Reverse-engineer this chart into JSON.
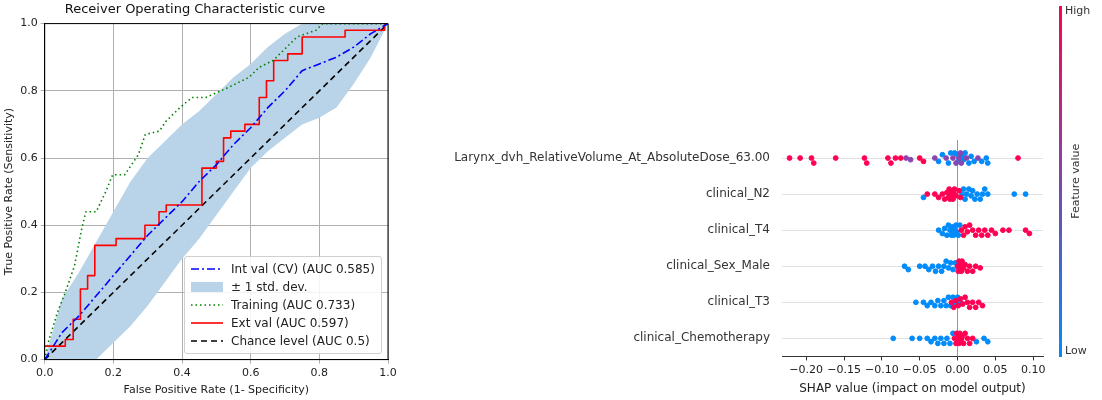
{
  "chart_data": [
    {
      "type": "line",
      "title": "Receiver Operating Characteristic curve",
      "xlabel": "False Positive Rate (1- Specificity)",
      "ylabel": "True Positive Rate (Sensitivity)",
      "xlim": [
        0,
        1
      ],
      "ylim": [
        0,
        1
      ],
      "xticks": [
        {
          "value": 0,
          "label": "0.0"
        },
        {
          "value": 0.2,
          "label": "0.2"
        },
        {
          "value": 0.4,
          "label": "0.4"
        },
        {
          "value": 0.6,
          "label": "0.6"
        },
        {
          "value": 0.8,
          "label": "0.8"
        },
        {
          "value": 1,
          "label": "1.0"
        }
      ],
      "yticks": [
        {
          "value": 0,
          "label": "0.0"
        },
        {
          "value": 0.2,
          "label": "0.2"
        },
        {
          "value": 0.4,
          "label": "0.4"
        },
        {
          "value": 0.6,
          "label": "0.6"
        },
        {
          "value": 0.8,
          "label": "0.8"
        },
        {
          "value": 1,
          "label": "1.0"
        }
      ],
      "grid": true,
      "legend": "bottom right",
      "marker": "none",
      "annotations": [
        "± 1 std. dev."
      ],
      "series": [
        {
          "name": "Int val (CV) (AUC 0.585)",
          "type": "line",
          "color": "#0000ff",
          "line_style": "dashdot",
          "x": [
            0,
            0.05,
            0.1,
            0.15,
            0.2,
            0.25,
            0.3,
            0.35,
            0.4,
            0.45,
            0.5,
            0.55,
            0.6,
            0.65,
            0.7,
            0.75,
            0.8,
            0.85,
            0.9,
            0.95,
            1
          ],
          "values": [
            0,
            0.08,
            0.13,
            0.19,
            0.25,
            0.31,
            0.37,
            0.42,
            0.47,
            0.53,
            0.58,
            0.64,
            0.69,
            0.75,
            0.8,
            0.86,
            0.88,
            0.9,
            0.93,
            0.97,
            1
          ],
          "lower": [
            0,
            0,
            0,
            0,
            0.05,
            0.1,
            0.16,
            0.23,
            0.3,
            0.36,
            0.43,
            0.5,
            0.57,
            0.62,
            0.66,
            0.7,
            0.72,
            0.75,
            0.82,
            0.9,
            1
          ],
          "upper": [
            0,
            0.18,
            0.26,
            0.35,
            0.44,
            0.53,
            0.6,
            0.65,
            0.7,
            0.74,
            0.79,
            0.84,
            0.88,
            0.93,
            0.97,
            1,
            1,
            1,
            1,
            1,
            1
          ]
        },
        {
          "name": "Training (AUC 0.733)",
          "type": "line",
          "color": "#008000",
          "line_style": "dotted",
          "x": [
            0,
            0.012,
            0.037,
            0.06,
            0.087,
            0.108,
            0.12,
            0.15,
            0.178,
            0.198,
            0.233,
            0.273,
            0.293,
            0.334,
            0.354,
            0.394,
            0.429,
            0.469,
            0.535,
            0.595,
            0.625,
            0.665,
            0.695,
            0.735,
            0.79,
            0.81,
            1
          ],
          "values": [
            0,
            0.057,
            0.14,
            0.2,
            0.28,
            0.39,
            0.44,
            0.44,
            0.5,
            0.55,
            0.55,
            0.61,
            0.67,
            0.68,
            0.71,
            0.75,
            0.78,
            0.78,
            0.81,
            0.84,
            0.87,
            0.89,
            0.92,
            0.96,
            0.98,
            1,
            1
          ]
        },
        {
          "name": "Ext val (AUC 0.597)",
          "type": "line",
          "color": "#ff0000",
          "line_style": "solid",
          "x": [
            0,
            0.06,
            0.06,
            0.083,
            0.083,
            0.104,
            0.104,
            0.125,
            0.125,
            0.146,
            0.146,
            0.208,
            0.208,
            0.292,
            0.292,
            0.333,
            0.333,
            0.354,
            0.354,
            0.458,
            0.458,
            0.5,
            0.5,
            0.521,
            0.521,
            0.542,
            0.542,
            0.583,
            0.583,
            0.625,
            0.625,
            0.646,
            0.646,
            0.667,
            0.667,
            0.708,
            0.708,
            0.75,
            0.75,
            0.875,
            0.875,
            0.99,
            0.99,
            1
          ],
          "values": [
            0.04,
            0.04,
            0.06,
            0.06,
            0.12,
            0.12,
            0.21,
            0.21,
            0.25,
            0.25,
            0.34,
            0.34,
            0.36,
            0.36,
            0.4,
            0.4,
            0.44,
            0.44,
            0.46,
            0.46,
            0.57,
            0.57,
            0.59,
            0.59,
            0.66,
            0.66,
            0.68,
            0.68,
            0.7,
            0.7,
            0.78,
            0.78,
            0.83,
            0.83,
            0.89,
            0.89,
            0.91,
            0.91,
            0.96,
            0.96,
            0.98,
            0.98,
            1,
            1
          ]
        },
        {
          "name": "Chance level (AUC 0.5)",
          "type": "line",
          "color": "#000000",
          "line_style": "dashed",
          "x": [
            0,
            1
          ],
          "values": [
            0,
            1
          ]
        }
      ]
    },
    {
      "type": "scatter",
      "orientation": "horizontal",
      "xlabel": "SHAP value (impact on model output)",
      "legend_title": "Feature value",
      "legend": "right",
      "categories": [
        "Larynx_dvh_RelativeVolume_At_AbsoluteDose_63.00",
        "clinical_N2",
        "clinical_T4",
        "clinical_Sex_Male",
        "clinical_T3",
        "clinical_Chemotherapy"
      ],
      "xlim": [
        -0.232,
        0.113
      ],
      "xticks": [
        {
          "value": -0.2,
          "label": "−0.20"
        },
        {
          "value": -0.15,
          "label": "−0.15"
        },
        {
          "value": -0.1,
          "label": "−0.10"
        },
        {
          "value": -0.05,
          "label": "−0.05"
        },
        {
          "value": 0,
          "label": "0.00"
        },
        {
          "value": 0.05,
          "label": "0.05"
        },
        {
          "value": 0.1,
          "label": "0.10"
        }
      ],
      "grid": "y",
      "marker": "circle",
      "ref_lines": [
        {
          "axis": "x",
          "value": 0,
          "color": "#999999"
        }
      ],
      "series": [
        {
          "name": "High",
          "color": "#ff0052",
          "x": [
            "Larynx_dvh_RelativeVolume_At_AbsoluteDose_63.00",
            "Larynx_dvh_RelativeVolume_At_AbsoluteDose_63.00",
            "Larynx_dvh_RelativeVolume_At_AbsoluteDose_63.00",
            "Larynx_dvh_RelativeVolume_At_AbsoluteDose_63.00",
            "Larynx_dvh_RelativeVolume_At_AbsoluteDose_63.00",
            "Larynx_dvh_RelativeVolume_At_AbsoluteDose_63.00",
            "Larynx_dvh_RelativeVolume_At_AbsoluteDose_63.00",
            "Larynx_dvh_RelativeVolume_At_AbsoluteDose_63.00",
            "Larynx_dvh_RelativeVolume_At_AbsoluteDose_63.00",
            "Larynx_dvh_RelativeVolume_At_AbsoluteDose_63.00",
            "Larynx_dvh_RelativeVolume_At_AbsoluteDose_63.00",
            "Larynx_dvh_RelativeVolume_At_AbsoluteDose_63.00",
            "Larynx_dvh_RelativeVolume_At_AbsoluteDose_63.00",
            "Larynx_dvh_RelativeVolume_At_AbsoluteDose_63.00",
            "clinical_N2",
            "clinical_N2",
            "clinical_N2",
            "clinical_N2",
            "clinical_N2",
            "clinical_N2",
            "clinical_N2",
            "clinical_N2",
            "clinical_N2",
            "clinical_N2",
            "clinical_N2",
            "clinical_N2",
            "clinical_N2",
            "clinical_N2",
            "clinical_N2",
            "clinical_N2",
            "clinical_N2",
            "clinical_N2",
            "clinical_T4",
            "clinical_T4",
            "clinical_T4",
            "clinical_T4",
            "clinical_T4",
            "clinical_T4",
            "clinical_T4",
            "clinical_T4",
            "clinical_T4",
            "clinical_T4",
            "clinical_T4",
            "clinical_T4",
            "clinical_T4",
            "clinical_T4",
            "clinical_T4",
            "clinical_T4",
            "clinical_T4",
            "clinical_Sex_Male",
            "clinical_Sex_Male",
            "clinical_Sex_Male",
            "clinical_Sex_Male",
            "clinical_Sex_Male",
            "clinical_Sex_Male",
            "clinical_Sex_Male",
            "clinical_Sex_Male",
            "clinical_Sex_Male",
            "clinical_Sex_Male",
            "clinical_Sex_Male",
            "clinical_Sex_Male",
            "clinical_Sex_Male",
            "clinical_Sex_Male",
            "clinical_T3",
            "clinical_T3",
            "clinical_T3",
            "clinical_T3",
            "clinical_T3",
            "clinical_T3",
            "clinical_T3",
            "clinical_T3",
            "clinical_T3",
            "clinical_T3",
            "clinical_T3",
            "clinical_T3",
            "clinical_T3",
            "clinical_Chemotherapy",
            "clinical_Chemotherapy",
            "clinical_Chemotherapy",
            "clinical_Chemotherapy",
            "clinical_Chemotherapy",
            "clinical_Chemotherapy",
            "clinical_Chemotherapy",
            "clinical_Chemotherapy",
            "clinical_Chemotherapy",
            "clinical_Chemotherapy",
            "clinical_Chemotherapy",
            "clinical_Chemotherapy",
            "clinical_Chemotherapy",
            "clinical_Chemotherapy"
          ],
          "values": [
            -0.222,
            -0.208,
            -0.193,
            -0.19,
            -0.161,
            -0.123,
            -0.12,
            -0.092,
            -0.088,
            -0.082,
            -0.075,
            -0.05,
            -0.045,
            0.08,
            -0.04,
            -0.03,
            -0.025,
            -0.02,
            -0.017,
            -0.014,
            -0.012,
            -0.011,
            -0.01,
            -0.01,
            -0.009,
            -0.008,
            -0.006,
            -0.005,
            -0.004,
            -0.002,
            0.002,
            0.004,
            0.005,
            0.008,
            0.01,
            0.013,
            0.016,
            0.02,
            0.024,
            0.028,
            0.032,
            0.036,
            0.04,
            0.045,
            0.05,
            0.06,
            0.068,
            0.09,
            0.095,
            0,
            0.001,
            0.002,
            0.003,
            0.004,
            0.005,
            0.006,
            0.008,
            0.01,
            0.013,
            0.016,
            0.02,
            0.024,
            0.03,
            -0.008,
            -0.005,
            -0.002,
            0.001,
            0.004,
            0.007,
            0.01,
            0.013,
            0.016,
            0.02,
            0.024,
            0.028,
            0.033,
            -0.004,
            -0.002,
            -0.001,
            0,
            0.001,
            0.002,
            0.003,
            0.005,
            0.006,
            0.008,
            0.01,
            0.013,
            0.016,
            0.02
          ]
        },
        {
          "color": "#8a46b0",
          "x": [
            "Larynx_dvh_RelativeVolume_At_AbsoluteDose_63.00",
            "Larynx_dvh_RelativeVolume_At_AbsoluteDose_63.00",
            "Larynx_dvh_RelativeVolume_At_AbsoluteDose_63.00",
            "Larynx_dvh_RelativeVolume_At_AbsoluteDose_63.00",
            "Larynx_dvh_RelativeVolume_At_AbsoluteDose_63.00",
            "Larynx_dvh_RelativeVolume_At_AbsoluteDose_63.00",
            "Larynx_dvh_RelativeVolume_At_AbsoluteDose_63.00",
            "Larynx_dvh_RelativeVolume_At_AbsoluteDose_63.00",
            "Larynx_dvh_RelativeVolume_At_AbsoluteDose_63.00",
            "Larynx_dvh_RelativeVolume_At_AbsoluteDose_63.00",
            "Larynx_dvh_RelativeVolume_At_AbsoluteDose_63.00"
          ],
          "values": [
            -0.068,
            -0.062,
            -0.03,
            -0.015,
            -0.006,
            -0.002,
            0.002,
            0.004,
            0.005,
            0.012,
            0.027
          ]
        },
        {
          "name": "Low",
          "color": "#008bfb",
          "x": [
            "Larynx_dvh_RelativeVolume_At_AbsoluteDose_63.00",
            "Larynx_dvh_RelativeVolume_At_AbsoluteDose_63.00",
            "Larynx_dvh_RelativeVolume_At_AbsoluteDose_63.00",
            "Larynx_dvh_RelativeVolume_At_AbsoluteDose_63.00",
            "Larynx_dvh_RelativeVolume_At_AbsoluteDose_63.00",
            "Larynx_dvh_RelativeVolume_At_AbsoluteDose_63.00",
            "Larynx_dvh_RelativeVolume_At_AbsoluteDose_63.00",
            "Larynx_dvh_RelativeVolume_At_AbsoluteDose_63.00",
            "Larynx_dvh_RelativeVolume_At_AbsoluteDose_63.00",
            "Larynx_dvh_RelativeVolume_At_AbsoluteDose_63.00",
            "Larynx_dvh_RelativeVolume_At_AbsoluteDose_63.00",
            "Larynx_dvh_RelativeVolume_At_AbsoluteDose_63.00",
            "Larynx_dvh_RelativeVolume_At_AbsoluteDose_63.00",
            "Larynx_dvh_RelativeVolume_At_AbsoluteDose_63.00",
            "Larynx_dvh_RelativeVolume_At_AbsoluteDose_63.00",
            "Larynx_dvh_RelativeVolume_At_AbsoluteDose_63.00",
            "Larynx_dvh_RelativeVolume_At_AbsoluteDose_63.00",
            "clinical_N2",
            "clinical_N2",
            "clinical_N2",
            "clinical_N2",
            "clinical_N2",
            "clinical_N2",
            "clinical_N2",
            "clinical_N2",
            "clinical_N2",
            "clinical_N2",
            "clinical_N2",
            "clinical_N2",
            "clinical_N2",
            "clinical_N2",
            "clinical_N2",
            "clinical_N2",
            "clinical_T4",
            "clinical_T4",
            "clinical_T4",
            "clinical_T4",
            "clinical_T4",
            "clinical_T4",
            "clinical_T4",
            "clinical_T4",
            "clinical_T4",
            "clinical_T4",
            "clinical_T4",
            "clinical_T4",
            "clinical_T4",
            "clinical_T4",
            "clinical_T4",
            "clinical_Sex_Male",
            "clinical_Sex_Male",
            "clinical_Sex_Male",
            "clinical_Sex_Male",
            "clinical_Sex_Male",
            "clinical_Sex_Male",
            "clinical_Sex_Male",
            "clinical_Sex_Male",
            "clinical_Sex_Male",
            "clinical_Sex_Male",
            "clinical_Sex_Male",
            "clinical_Sex_Male",
            "clinical_Sex_Male",
            "clinical_Sex_Male",
            "clinical_Sex_Male",
            "clinical_T3",
            "clinical_T3",
            "clinical_T3",
            "clinical_T3",
            "clinical_T3",
            "clinical_T3",
            "clinical_T3",
            "clinical_T3",
            "clinical_T3",
            "clinical_T3",
            "clinical_T3",
            "clinical_T3",
            "clinical_T3",
            "clinical_T3",
            "clinical_T3",
            "clinical_Chemotherapy",
            "clinical_Chemotherapy",
            "clinical_Chemotherapy",
            "clinical_Chemotherapy",
            "clinical_Chemotherapy",
            "clinical_Chemotherapy",
            "clinical_Chemotherapy",
            "clinical_Chemotherapy",
            "clinical_Chemotherapy",
            "clinical_Chemotherapy",
            "clinical_Chemotherapy",
            "clinical_Chemotherapy",
            "clinical_Chemotherapy",
            "clinical_Chemotherapy",
            "clinical_Chemotherapy"
          ],
          "values": [
            -0.025,
            -0.02,
            -0.012,
            -0.009,
            -0.004,
            0,
            0.001,
            0.003,
            0.006,
            0.008,
            0.01,
            0.015,
            0.018,
            0.022,
            0.032,
            0.038,
            0.04,
            -0.045,
            0.006,
            0.008,
            0.01,
            0.012,
            0.015,
            0.018,
            0.02,
            0.023,
            0.026,
            0.03,
            0.033,
            0.036,
            0.04,
            0.075,
            0.09,
            -0.025,
            -0.02,
            -0.017,
            -0.014,
            -0.012,
            -0.01,
            -0.008,
            -0.007,
            -0.006,
            -0.005,
            -0.004,
            -0.002,
            -0.001,
            0.001,
            0.003,
            -0.07,
            -0.065,
            -0.05,
            -0.043,
            -0.038,
            -0.033,
            -0.029,
            -0.025,
            -0.021,
            -0.018,
            -0.015,
            -0.012,
            -0.009,
            -0.006,
            -0.003,
            -0.055,
            -0.045,
            -0.04,
            -0.035,
            -0.03,
            -0.026,
            -0.022,
            -0.018,
            -0.015,
            -0.012,
            -0.009,
            -0.006,
            -0.003,
            0,
            0.003,
            -0.085,
            -0.06,
            -0.05,
            -0.04,
            -0.035,
            -0.03,
            -0.026,
            -0.022,
            -0.018,
            -0.014,
            -0.01,
            -0.006,
            0.025,
            0.035,
            0.04
          ]
        }
      ]
    }
  ]
}
